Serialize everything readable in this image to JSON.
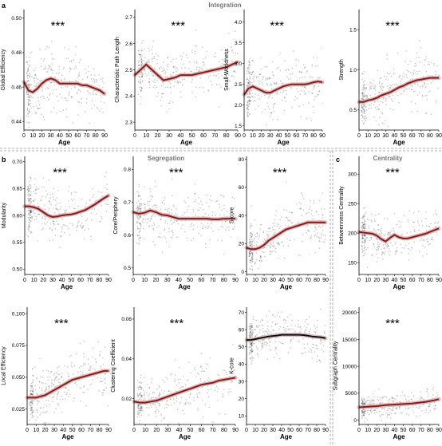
{
  "figure": {
    "panel_letters": [
      "a",
      "b",
      "c"
    ],
    "section_titles": [
      "Integration",
      "Segregation",
      "Centrality"
    ]
  },
  "colors": {
    "fit_line": "#8b1a1a",
    "points": "#000000",
    "divider": "#9a9a9a"
  },
  "chart_data": [
    {
      "type": "scatter",
      "ylabel": "Global Efficiency",
      "xlabel": "Age",
      "significance": "***",
      "x_ticks": [
        "0",
        "10",
        "20",
        "30",
        "40",
        "50",
        "60",
        "70",
        "80",
        "90"
      ],
      "xlim": [
        0,
        90
      ],
      "y_ticks": [
        "0.44",
        "0.46",
        "0.48",
        "0.50"
      ],
      "ylim": [
        0.435,
        0.505
      ],
      "fit": {
        "x": [
          0,
          5,
          10,
          15,
          20,
          25,
          30,
          35,
          40,
          45,
          50,
          55,
          60,
          65,
          70,
          75,
          80,
          85,
          90
        ],
        "y": [
          0.463,
          0.458,
          0.457,
          0.459,
          0.462,
          0.464,
          0.465,
          0.464,
          0.462,
          0.462,
          0.462,
          0.462,
          0.462,
          0.461,
          0.461,
          0.46,
          0.459,
          0.458,
          0.456
        ]
      },
      "cloud": {
        "center": [
          0.462,
          0.462
        ],
        "spread": [
          0.012,
          0.009
        ],
        "x_start": 3
      }
    },
    {
      "type": "scatter",
      "ylabel": "Characteristic Path Length",
      "xlabel": "Age",
      "significance": "***",
      "x_ticks": [
        "0",
        "10",
        "20",
        "30",
        "40",
        "50",
        "60",
        "70",
        "80",
        "90"
      ],
      "xlim": [
        0,
        90
      ],
      "y_ticks": [
        "2.3",
        "2.4",
        "2.5",
        "2.6",
        "2.7"
      ],
      "ylim": [
        2.27,
        2.73
      ],
      "fit": {
        "x": [
          0,
          5,
          10,
          15,
          20,
          25,
          30,
          35,
          40,
          45,
          50,
          55,
          60,
          65,
          70,
          75,
          80,
          85,
          90
        ],
        "y": [
          2.48,
          2.5,
          2.52,
          2.5,
          2.48,
          2.46,
          2.465,
          2.47,
          2.48,
          2.48,
          2.48,
          2.485,
          2.49,
          2.495,
          2.5,
          2.505,
          2.51,
          2.52,
          2.53
        ]
      },
      "cloud": {
        "center": [
          2.49,
          2.5
        ],
        "spread": [
          0.06,
          0.06
        ],
        "x_start": 3
      }
    },
    {
      "type": "scatter",
      "ylabel": "Small-Worldness",
      "xlabel": "Age",
      "significance": "***",
      "x_ticks": [
        "0",
        "10",
        "20",
        "30",
        "40",
        "50",
        "60",
        "70",
        "80",
        "90"
      ],
      "xlim": [
        0,
        90
      ],
      "y_ticks": [
        "1.5",
        "2.0",
        "2.5",
        "3.0",
        "3.5",
        "4.0"
      ],
      "ylim": [
        1.4,
        4.3
      ],
      "fit": {
        "x": [
          0,
          5,
          10,
          15,
          20,
          25,
          30,
          35,
          40,
          45,
          50,
          55,
          60,
          65,
          70,
          75,
          80,
          85,
          90
        ],
        "y": [
          2.25,
          2.4,
          2.45,
          2.4,
          2.35,
          2.3,
          2.3,
          2.35,
          2.4,
          2.45,
          2.48,
          2.5,
          2.5,
          2.5,
          2.5,
          2.52,
          2.55,
          2.57,
          2.55
        ]
      },
      "cloud": {
        "center": [
          2.45,
          2.55
        ],
        "spread": [
          0.4,
          0.45
        ],
        "x_start": 3
      }
    },
    {
      "type": "scatter",
      "ylabel": "Strength",
      "xlabel": "Age",
      "significance": "***",
      "x_ticks": [
        "0",
        "10",
        "20",
        "30",
        "40",
        "50",
        "60",
        "70",
        "80",
        "90"
      ],
      "xlim": [
        0,
        90
      ],
      "y_ticks": [
        "0.5",
        "1.0",
        "1.5"
      ],
      "ylim": [
        0.25,
        1.75
      ],
      "fit": {
        "x": [
          0,
          5,
          10,
          15,
          20,
          25,
          30,
          35,
          40,
          45,
          50,
          55,
          60,
          65,
          70,
          75,
          80,
          85,
          90
        ],
        "y": [
          0.6,
          0.6,
          0.62,
          0.63,
          0.65,
          0.68,
          0.7,
          0.72,
          0.75,
          0.78,
          0.8,
          0.83,
          0.85,
          0.87,
          0.88,
          0.89,
          0.9,
          0.9,
          0.9
        ]
      },
      "cloud": {
        "center": [
          0.6,
          0.9
        ],
        "spread": [
          0.18,
          0.22
        ],
        "x_start": 3
      }
    },
    {
      "type": "scatter",
      "ylabel": "Modularity",
      "xlabel": "Age",
      "significance": "***",
      "x_ticks": [
        "0",
        "10",
        "20",
        "30",
        "40",
        "50",
        "60",
        "70",
        "80",
        "90"
      ],
      "xlim": [
        0,
        90
      ],
      "y_ticks": [
        "0.50",
        "0.55",
        "0.60",
        "0.65",
        "0.70"
      ],
      "ylim": [
        0.49,
        0.71
      ],
      "fit": {
        "x": [
          0,
          5,
          10,
          15,
          20,
          25,
          30,
          35,
          40,
          45,
          50,
          55,
          60,
          65,
          70,
          75,
          80,
          85,
          90
        ],
        "y": [
          0.617,
          0.617,
          0.615,
          0.612,
          0.606,
          0.6,
          0.597,
          0.598,
          0.6,
          0.601,
          0.602,
          0.604,
          0.607,
          0.61,
          0.615,
          0.62,
          0.626,
          0.632,
          0.637
        ]
      },
      "cloud": {
        "center": [
          0.615,
          0.635
        ],
        "spread": [
          0.03,
          0.03
        ],
        "x_start": 3
      }
    },
    {
      "type": "scatter",
      "ylabel": "Core/Periphery",
      "xlabel": "Age",
      "significance": "***",
      "x_ticks": [
        "0",
        "10",
        "20",
        "30",
        "40",
        "50",
        "60",
        "70",
        "80",
        "90"
      ],
      "xlim": [
        0,
        90
      ],
      "y_ticks": [
        "0.5",
        "0.6",
        "0.7",
        "0.8"
      ],
      "ylim": [
        0.48,
        0.84
      ],
      "fit": {
        "x": [
          0,
          5,
          10,
          15,
          20,
          25,
          30,
          35,
          40,
          45,
          50,
          55,
          60,
          65,
          70,
          75,
          80,
          85,
          90
        ],
        "y": [
          0.67,
          0.665,
          0.668,
          0.675,
          0.67,
          0.662,
          0.66,
          0.655,
          0.65,
          0.65,
          0.65,
          0.65,
          0.65,
          0.65,
          0.648,
          0.648,
          0.65,
          0.65,
          0.65
        ]
      },
      "cloud": {
        "center": [
          0.665,
          0.65
        ],
        "spread": [
          0.05,
          0.05
        ],
        "x_start": 3
      }
    },
    {
      "type": "scatter",
      "ylabel": "S-core",
      "xlabel": "Age",
      "significance": "***",
      "x_ticks": [
        "0",
        "10",
        "20",
        "30",
        "40",
        "50",
        "60",
        "70",
        "80",
        "90"
      ],
      "xlim": [
        0,
        90
      ],
      "y_ticks": [
        "0",
        "20",
        "40",
        "60",
        "80"
      ],
      "ylim": [
        -2,
        82
      ],
      "fit": {
        "x": [
          0,
          5,
          10,
          15,
          20,
          25,
          30,
          35,
          40,
          45,
          50,
          55,
          60,
          65,
          70,
          75,
          80,
          85,
          90
        ],
        "y": [
          17,
          16,
          16,
          17,
          19,
          22,
          24,
          26,
          28,
          30,
          31,
          32,
          33,
          34,
          35,
          35,
          35,
          35,
          35
        ]
      },
      "cloud": {
        "center": [
          18,
          35
        ],
        "spread": [
          10,
          12
        ],
        "x_start": 3
      }
    },
    {
      "type": "scatter",
      "ylabel": "Betweenness Centrality",
      "xlabel": "Age",
      "significance": "***",
      "x_ticks": [
        "0",
        "10",
        "20",
        "30",
        "40",
        "50",
        "60",
        "70",
        "80",
        "90"
      ],
      "xlim": [
        0,
        90
      ],
      "y_ticks": [
        "150",
        "200",
        "250",
        "300"
      ],
      "ylim": [
        130,
        330
      ],
      "fit": {
        "x": [
          0,
          5,
          10,
          15,
          20,
          25,
          30,
          35,
          40,
          45,
          50,
          55,
          60,
          65,
          70,
          75,
          80,
          85,
          90
        ],
        "y": [
          202,
          201,
          200,
          199,
          196,
          190,
          186,
          192,
          197,
          193,
          191,
          191,
          193,
          195,
          197,
          199,
          202,
          205,
          208
        ]
      },
      "cloud": {
        "center": [
          200,
          205
        ],
        "spread": [
          22,
          22
        ],
        "x_start": 3
      }
    },
    {
      "type": "scatter",
      "ylabel": "Local Efficiency",
      "xlabel": "Age",
      "significance": "***",
      "x_ticks": [
        "0",
        "10",
        "20",
        "30",
        "40",
        "50",
        "60",
        "70",
        "80",
        "90"
      ],
      "xlim": [
        0,
        90
      ],
      "y_ticks": [
        "0.025",
        "0.050",
        "0.075",
        "0.100"
      ],
      "ylim": [
        0.013,
        0.105
      ],
      "fit": {
        "x": [
          0,
          5,
          10,
          15,
          20,
          25,
          30,
          35,
          40,
          45,
          50,
          55,
          60,
          65,
          70,
          75,
          80,
          85,
          90
        ],
        "y": [
          0.034,
          0.034,
          0.034,
          0.035,
          0.036,
          0.038,
          0.04,
          0.042,
          0.044,
          0.046,
          0.048,
          0.049,
          0.05,
          0.051,
          0.052,
          0.053,
          0.054,
          0.055,
          0.055
        ]
      },
      "cloud": {
        "center": [
          0.036,
          0.055
        ],
        "spread": [
          0.01,
          0.014
        ],
        "x_start": 3
      }
    },
    {
      "type": "scatter",
      "ylabel": "Clustering Coefficient",
      "xlabel": "Age",
      "significance": "***",
      "x_ticks": [
        "0",
        "10",
        "20",
        "30",
        "40",
        "50",
        "60",
        "70",
        "80",
        "90"
      ],
      "xlim": [
        0,
        90
      ],
      "y_ticks": [
        "0.02",
        "0.04",
        "0.06"
      ],
      "ylim": [
        0.007,
        0.066
      ],
      "fit": {
        "x": [
          0,
          5,
          10,
          15,
          20,
          25,
          30,
          35,
          40,
          45,
          50,
          55,
          60,
          65,
          70,
          75,
          80,
          85,
          90
        ],
        "y": [
          0.0185,
          0.018,
          0.018,
          0.0185,
          0.019,
          0.02,
          0.021,
          0.022,
          0.023,
          0.024,
          0.025,
          0.026,
          0.027,
          0.0275,
          0.028,
          0.029,
          0.0295,
          0.03,
          0.0305
        ]
      },
      "cloud": {
        "center": [
          0.019,
          0.03
        ],
        "spread": [
          0.006,
          0.009
        ],
        "x_start": 3
      }
    },
    {
      "type": "scatter",
      "ylabel": "K-core",
      "xlabel": "Age",
      "significance": "",
      "x_ticks": [
        "0",
        "10",
        "20",
        "30",
        "40",
        "50",
        "60",
        "70",
        "80",
        "90"
      ],
      "xlim": [
        0,
        90
      ],
      "y_ticks": [
        "10",
        "20",
        "30",
        "40",
        "50",
        "60",
        "70"
      ],
      "ylim": [
        5,
        73
      ],
      "fit": {
        "x": [
          0,
          5,
          10,
          15,
          20,
          25,
          30,
          35,
          40,
          45,
          50,
          55,
          60,
          65,
          70,
          75,
          80,
          85,
          90
        ],
        "y": [
          54,
          54,
          54.5,
          55,
          55.5,
          56,
          56.3,
          56.6,
          57,
          57,
          57,
          57,
          57,
          56.8,
          56.5,
          56,
          55.8,
          55.5,
          55
        ]
      },
      "cloud": {
        "center": [
          54,
          55
        ],
        "spread": [
          7,
          7
        ],
        "x_start": 3
      }
    },
    {
      "type": "scatter",
      "ylabel": "Subgraph Centrality",
      "xlabel": "Age",
      "significance": "***",
      "x_ticks": [
        "0",
        "10",
        "20",
        "30",
        "40",
        "50",
        "60",
        "70",
        "80",
        "90"
      ],
      "xlim": [
        0,
        90
      ],
      "y_ticks": [
        "0",
        "5000",
        "10000",
        "15000",
        "20000"
      ],
      "ylim": [
        -800,
        21000
      ],
      "fit": {
        "x": [
          0,
          5,
          10,
          15,
          20,
          25,
          30,
          35,
          40,
          45,
          50,
          55,
          60,
          65,
          70,
          75,
          80,
          85,
          90
        ],
        "y": [
          2400,
          2450,
          2500,
          2550,
          2600,
          2700,
          2800,
          2850,
          2900,
          2950,
          3000,
          3050,
          3100,
          3200,
          3300,
          3400,
          3550,
          3700,
          3900
        ]
      },
      "cloud": {
        "center": [
          2400,
          3800
        ],
        "spread": [
          1100,
          1500
        ],
        "x_start": 3
      }
    }
  ]
}
